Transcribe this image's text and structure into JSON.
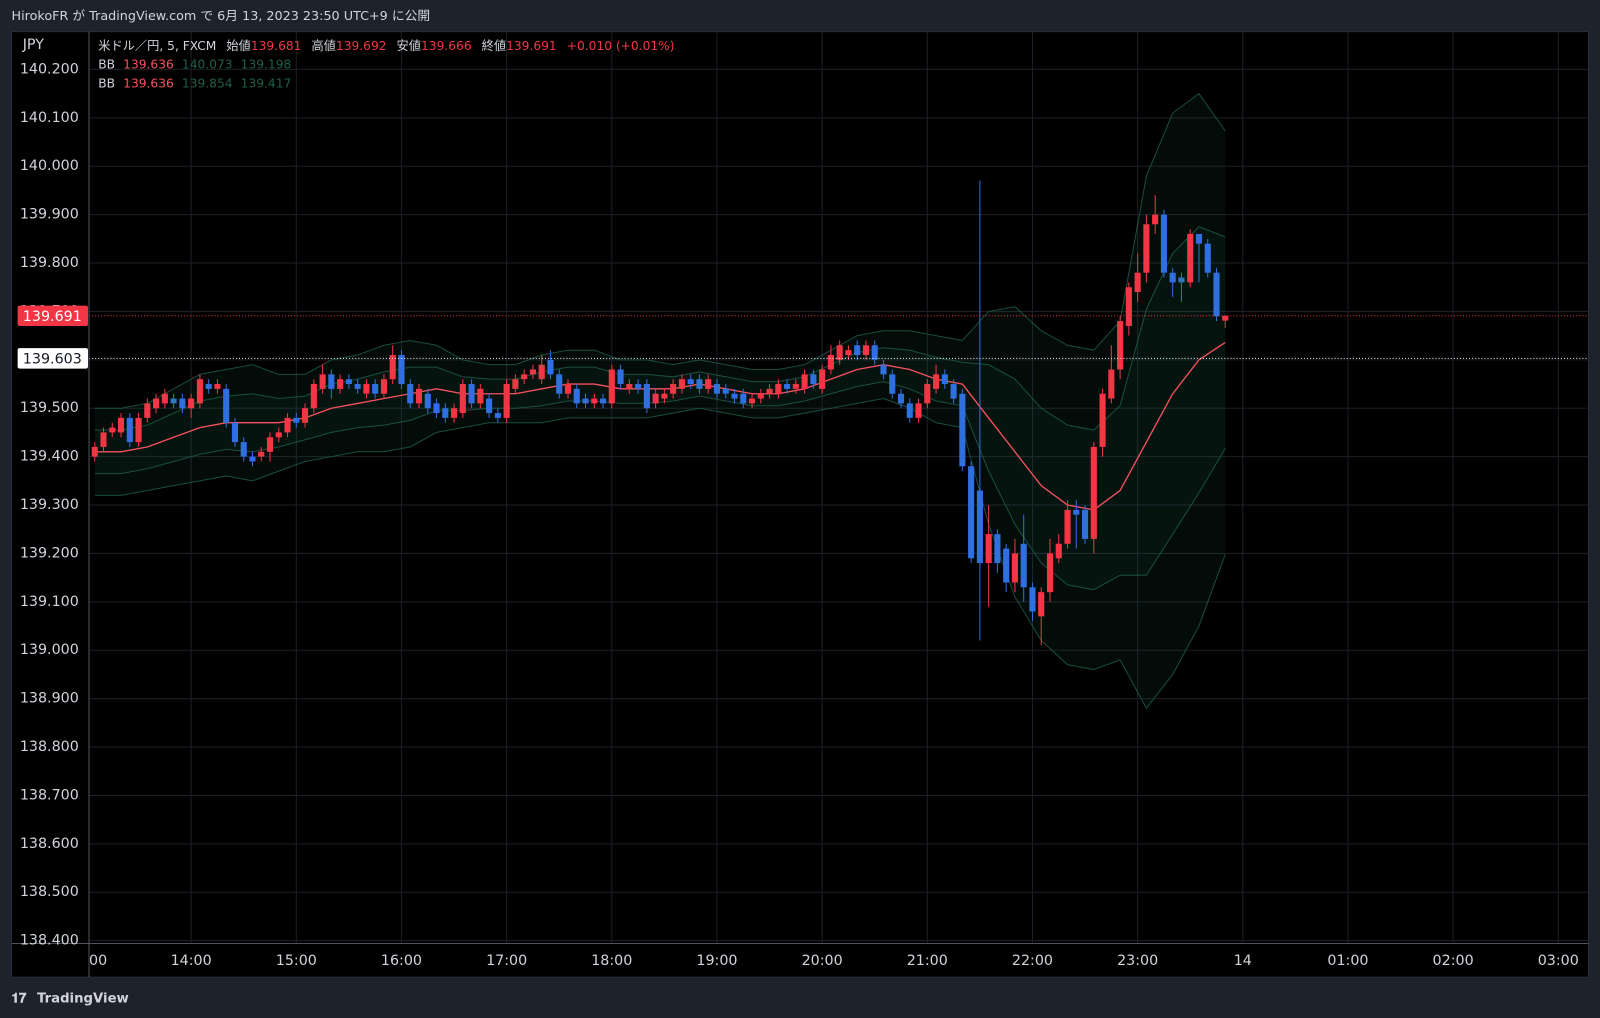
{
  "header": {
    "publisher": "HirokoFR が TradingView.com で 6月 13, 2023 23:50 UTC+9 に公開"
  },
  "footer": {
    "brand": "TradingView"
  },
  "chart_data": {
    "type": "candlestick",
    "symbol": "米ドル／円, 5, FXCM",
    "currency": "JPY",
    "ohlc_legend": {
      "open_label": "始値",
      "open": 139.681,
      "high_label": "高値",
      "high": 139.692,
      "low_label": "安値",
      "low": 139.666,
      "close_label": "終値",
      "close": 139.691,
      "change": "+0.010 (+0.01%)"
    },
    "indicators": [
      {
        "name": "BB",
        "basis": 139.636,
        "upper": 140.073,
        "lower": 139.198
      },
      {
        "name": "BB",
        "basis": 139.636,
        "upper": 139.854,
        "lower": 139.417
      }
    ],
    "up_color": "#f23645",
    "down_color": "#2f6fe0",
    "x": [
      "13:05",
      "13:10",
      "13:15",
      "13:20",
      "13:25",
      "13:30",
      "13:35",
      "13:40",
      "13:45",
      "13:50",
      "13:55",
      "14:00",
      "14:05",
      "14:10",
      "14:15",
      "14:20",
      "14:25",
      "14:30",
      "14:35",
      "14:40",
      "14:45",
      "14:50",
      "14:55",
      "15:00",
      "15:05",
      "15:10",
      "15:15",
      "15:20",
      "15:25",
      "15:30",
      "15:35",
      "15:40",
      "15:45",
      "15:50",
      "15:55",
      "16:00",
      "16:05",
      "16:10",
      "16:15",
      "16:20",
      "16:25",
      "16:30",
      "16:35",
      "16:40",
      "16:45",
      "16:50",
      "16:55",
      "17:00",
      "17:05",
      "17:10",
      "17:15",
      "17:20",
      "17:25",
      "17:30",
      "17:35",
      "17:40",
      "17:45",
      "17:50",
      "17:55",
      "18:00",
      "18:05",
      "18:10",
      "18:15",
      "18:20",
      "18:25",
      "18:30",
      "18:35",
      "18:40",
      "18:45",
      "18:50",
      "18:55",
      "19:00",
      "19:05",
      "19:10",
      "19:15",
      "19:20",
      "19:25",
      "19:30",
      "19:35",
      "19:40",
      "19:45",
      "19:50",
      "19:55",
      "20:00",
      "20:05",
      "20:10",
      "20:15",
      "20:20",
      "20:25",
      "20:30",
      "20:35",
      "20:40",
      "20:45",
      "20:50",
      "20:55",
      "21:00",
      "21:05",
      "21:10",
      "21:15",
      "21:20",
      "21:25",
      "21:30",
      "21:35",
      "21:40",
      "21:45",
      "21:50",
      "21:55",
      "22:00",
      "22:05",
      "22:10",
      "22:15",
      "22:20",
      "22:25",
      "22:30",
      "22:35",
      "22:40",
      "22:45",
      "22:50",
      "22:55",
      "23:00",
      "23:05",
      "23:10",
      "23:15",
      "23:20",
      "23:25",
      "23:30",
      "23:35",
      "23:40",
      "23:45",
      "23:50"
    ],
    "ohlc": [
      [
        139.4,
        139.43,
        139.39,
        139.42
      ],
      [
        139.42,
        139.46,
        139.41,
        139.45
      ],
      [
        139.45,
        139.47,
        139.44,
        139.46
      ],
      [
        139.45,
        139.49,
        139.44,
        139.48
      ],
      [
        139.48,
        139.49,
        139.42,
        139.43
      ],
      [
        139.43,
        139.49,
        139.42,
        139.48
      ],
      [
        139.48,
        139.52,
        139.47,
        139.51
      ],
      [
        139.5,
        139.53,
        139.49,
        139.52
      ],
      [
        139.51,
        139.54,
        139.5,
        139.53
      ],
      [
        139.52,
        139.53,
        139.5,
        139.51
      ],
      [
        139.52,
        139.53,
        139.49,
        139.5
      ],
      [
        139.5,
        139.53,
        139.48,
        139.52
      ],
      [
        139.51,
        139.57,
        139.5,
        139.56
      ],
      [
        139.55,
        139.56,
        139.53,
        139.54
      ],
      [
        139.54,
        139.56,
        139.53,
        139.55
      ],
      [
        139.54,
        139.55,
        139.46,
        139.47
      ],
      [
        139.47,
        139.48,
        139.42,
        139.43
      ],
      [
        139.43,
        139.44,
        139.39,
        139.4
      ],
      [
        139.4,
        139.41,
        139.38,
        139.39
      ],
      [
        139.4,
        139.42,
        139.39,
        139.41
      ],
      [
        139.41,
        139.45,
        139.39,
        139.44
      ],
      [
        139.44,
        139.46,
        139.43,
        139.45
      ],
      [
        139.45,
        139.49,
        139.44,
        139.48
      ],
      [
        139.48,
        139.49,
        139.46,
        139.47
      ],
      [
        139.47,
        139.51,
        139.46,
        139.5
      ],
      [
        139.5,
        139.56,
        139.49,
        139.55
      ],
      [
        139.54,
        139.59,
        139.53,
        139.57
      ],
      [
        139.57,
        139.58,
        139.52,
        139.54
      ],
      [
        139.54,
        139.57,
        139.53,
        139.56
      ],
      [
        139.56,
        139.57,
        139.54,
        139.55
      ],
      [
        139.55,
        139.56,
        139.53,
        139.54
      ],
      [
        139.53,
        139.56,
        139.52,
        139.55
      ],
      [
        139.55,
        139.56,
        139.52,
        139.53
      ],
      [
        139.53,
        139.57,
        139.52,
        139.56
      ],
      [
        139.56,
        139.63,
        139.55,
        139.61
      ],
      [
        139.61,
        139.62,
        139.54,
        139.55
      ],
      [
        139.55,
        139.56,
        139.5,
        139.51
      ],
      [
        139.51,
        139.55,
        139.5,
        139.54
      ],
      [
        139.53,
        139.54,
        139.49,
        139.5
      ],
      [
        139.51,
        139.52,
        139.48,
        139.49
      ],
      [
        139.5,
        139.51,
        139.47,
        139.48
      ],
      [
        139.48,
        139.51,
        139.47,
        139.5
      ],
      [
        139.49,
        139.56,
        139.48,
        139.55
      ],
      [
        139.55,
        139.56,
        139.5,
        139.51
      ],
      [
        139.51,
        139.55,
        139.5,
        139.54
      ],
      [
        139.52,
        139.53,
        139.48,
        139.49
      ],
      [
        139.49,
        139.5,
        139.47,
        139.48
      ],
      [
        139.48,
        139.56,
        139.47,
        139.55
      ],
      [
        139.54,
        139.57,
        139.53,
        139.56
      ],
      [
        139.56,
        139.58,
        139.55,
        139.57
      ],
      [
        139.57,
        139.59,
        139.56,
        139.58
      ],
      [
        139.56,
        139.61,
        139.55,
        139.59
      ],
      [
        139.6,
        139.62,
        139.56,
        139.57
      ],
      [
        139.57,
        139.58,
        139.52,
        139.53
      ],
      [
        139.53,
        139.56,
        139.52,
        139.55
      ],
      [
        139.54,
        139.55,
        139.5,
        139.51
      ],
      [
        139.52,
        139.53,
        139.5,
        139.51
      ],
      [
        139.51,
        139.53,
        139.5,
        139.52
      ],
      [
        139.52,
        139.53,
        139.5,
        139.51
      ],
      [
        139.51,
        139.59,
        139.5,
        139.58
      ],
      [
        139.58,
        139.59,
        139.54,
        139.55
      ],
      [
        139.54,
        139.56,
        139.53,
        139.55
      ],
      [
        139.55,
        139.56,
        139.53,
        139.54
      ],
      [
        139.55,
        139.56,
        139.49,
        139.5
      ],
      [
        139.51,
        139.54,
        139.5,
        139.53
      ],
      [
        139.52,
        139.54,
        139.51,
        139.53
      ],
      [
        139.53,
        139.56,
        139.52,
        139.55
      ],
      [
        139.54,
        139.57,
        139.53,
        139.56
      ],
      [
        139.56,
        139.57,
        139.54,
        139.55
      ],
      [
        139.56,
        139.57,
        139.53,
        139.54
      ],
      [
        139.54,
        139.57,
        139.53,
        139.56
      ],
      [
        139.55,
        139.56,
        139.52,
        139.53
      ],
      [
        139.54,
        139.55,
        139.52,
        139.53
      ],
      [
        139.53,
        139.54,
        139.51,
        139.52
      ],
      [
        139.53,
        139.54,
        139.5,
        139.51
      ],
      [
        139.51,
        139.53,
        139.5,
        139.52
      ],
      [
        139.52,
        139.54,
        139.51,
        139.53
      ],
      [
        139.53,
        139.55,
        139.52,
        139.54
      ],
      [
        139.53,
        139.56,
        139.52,
        139.55
      ],
      [
        139.55,
        139.56,
        139.53,
        139.54
      ],
      [
        139.54,
        139.56,
        139.53,
        139.55
      ],
      [
        139.54,
        139.58,
        139.53,
        139.57
      ],
      [
        139.57,
        139.58,
        139.54,
        139.55
      ],
      [
        139.54,
        139.59,
        139.53,
        139.58
      ],
      [
        139.58,
        139.63,
        139.57,
        139.61
      ],
      [
        139.6,
        139.64,
        139.59,
        139.63
      ],
      [
        139.61,
        139.63,
        139.6,
        139.62
      ],
      [
        139.63,
        139.64,
        139.6,
        139.61
      ],
      [
        139.61,
        139.64,
        139.6,
        139.63
      ],
      [
        139.63,
        139.64,
        139.59,
        139.6
      ],
      [
        139.59,
        139.6,
        139.56,
        139.57
      ],
      [
        139.57,
        139.58,
        139.52,
        139.53
      ],
      [
        139.53,
        139.54,
        139.5,
        139.51
      ],
      [
        139.51,
        139.52,
        139.47,
        139.48
      ],
      [
        139.48,
        139.52,
        139.47,
        139.51
      ],
      [
        139.51,
        139.56,
        139.5,
        139.55
      ],
      [
        139.54,
        139.59,
        139.53,
        139.57
      ],
      [
        139.57,
        139.58,
        139.54,
        139.55
      ],
      [
        139.55,
        139.56,
        139.51,
        139.52
      ],
      [
        139.53,
        139.54,
        139.37,
        139.38
      ],
      [
        139.38,
        139.39,
        139.18,
        139.19
      ],
      [
        139.33,
        139.97,
        139.02,
        139.18
      ],
      [
        139.18,
        139.3,
        139.09,
        139.24
      ],
      [
        139.24,
        139.25,
        139.16,
        139.18
      ],
      [
        139.21,
        139.22,
        139.12,
        139.14
      ],
      [
        139.14,
        139.23,
        139.12,
        139.2
      ],
      [
        139.22,
        139.28,
        139.1,
        139.13
      ],
      [
        139.13,
        139.14,
        139.06,
        139.08
      ],
      [
        139.07,
        139.13,
        139.01,
        139.12
      ],
      [
        139.12,
        139.23,
        139.1,
        139.2
      ],
      [
        139.19,
        139.24,
        139.18,
        139.22
      ],
      [
        139.22,
        139.31,
        139.21,
        139.29
      ],
      [
        139.29,
        139.31,
        139.21,
        139.28
      ],
      [
        139.29,
        139.3,
        139.22,
        139.23
      ],
      [
        139.23,
        139.43,
        139.2,
        139.42
      ],
      [
        139.42,
        139.54,
        139.4,
        139.53
      ],
      [
        139.52,
        139.63,
        139.51,
        139.58
      ],
      [
        139.58,
        139.69,
        139.56,
        139.68
      ],
      [
        139.67,
        139.76,
        139.65,
        139.75
      ],
      [
        139.74,
        139.82,
        139.72,
        139.78
      ],
      [
        139.78,
        139.9,
        139.76,
        139.88
      ],
      [
        139.88,
        139.94,
        139.86,
        139.9
      ],
      [
        139.9,
        139.91,
        139.77,
        139.78
      ],
      [
        139.78,
        139.79,
        139.73,
        139.76
      ],
      [
        139.77,
        139.78,
        139.72,
        139.76
      ],
      [
        139.76,
        139.87,
        139.75,
        139.86
      ],
      [
        139.86,
        139.86,
        139.76,
        139.84
      ],
      [
        139.84,
        139.85,
        139.77,
        139.78
      ],
      [
        139.78,
        139.79,
        139.68,
        139.69
      ],
      [
        139.681,
        139.692,
        139.666,
        139.691
      ]
    ],
    "bands": {
      "basis_color": "#f7525f",
      "band_color": "#1e5f4a",
      "x": [
        "13:05",
        "13:20",
        "13:35",
        "13:50",
        "14:05",
        "14:20",
        "14:35",
        "14:50",
        "15:05",
        "15:20",
        "15:35",
        "15:50",
        "16:05",
        "16:20",
        "16:35",
        "16:50",
        "17:05",
        "17:20",
        "17:35",
        "17:50",
        "18:05",
        "18:20",
        "18:35",
        "18:50",
        "19:05",
        "19:20",
        "19:35",
        "19:50",
        "20:05",
        "20:20",
        "20:35",
        "20:50",
        "21:05",
        "21:20",
        "21:35",
        "21:50",
        "22:05",
        "22:20",
        "22:35",
        "22:50",
        "23:05",
        "23:20",
        "23:35",
        "23:50"
      ],
      "basis": [
        139.41,
        139.41,
        139.42,
        139.44,
        139.46,
        139.47,
        139.47,
        139.47,
        139.48,
        139.5,
        139.51,
        139.52,
        139.53,
        139.54,
        139.53,
        139.53,
        139.53,
        139.54,
        139.55,
        139.55,
        139.54,
        139.54,
        139.54,
        139.55,
        139.54,
        139.53,
        139.53,
        139.54,
        139.56,
        139.58,
        139.59,
        139.58,
        139.56,
        139.55,
        139.48,
        139.41,
        139.34,
        139.3,
        139.29,
        139.33,
        139.43,
        139.53,
        139.6,
        139.636
      ],
      "upper_outer": [
        139.5,
        139.5,
        139.51,
        139.54,
        139.57,
        139.58,
        139.59,
        139.57,
        139.57,
        139.6,
        139.61,
        139.63,
        139.64,
        139.63,
        139.6,
        139.59,
        139.59,
        139.61,
        139.62,
        139.62,
        139.6,
        139.6,
        139.59,
        139.6,
        139.59,
        139.58,
        139.58,
        139.59,
        139.62,
        139.65,
        139.66,
        139.66,
        139.65,
        139.64,
        139.7,
        139.71,
        139.66,
        139.63,
        139.62,
        139.68,
        139.98,
        140.11,
        140.15,
        140.073
      ],
      "lower_outer": [
        139.32,
        139.32,
        139.33,
        139.34,
        139.35,
        139.36,
        139.35,
        139.37,
        139.39,
        139.4,
        139.41,
        139.41,
        139.42,
        139.45,
        139.46,
        139.47,
        139.47,
        139.47,
        139.48,
        139.48,
        139.48,
        139.48,
        139.49,
        139.5,
        139.49,
        139.48,
        139.48,
        139.49,
        139.5,
        139.51,
        139.52,
        139.5,
        139.47,
        139.46,
        139.26,
        139.11,
        139.02,
        138.97,
        138.96,
        138.98,
        138.88,
        138.95,
        139.05,
        139.198
      ],
      "upper_inner": [
        139.455,
        139.455,
        139.465,
        139.49,
        139.515,
        139.525,
        139.53,
        139.52,
        139.525,
        139.55,
        139.56,
        139.575,
        139.585,
        139.585,
        139.565,
        139.56,
        139.56,
        139.575,
        139.585,
        139.585,
        139.57,
        139.57,
        139.565,
        139.575,
        139.565,
        139.555,
        139.555,
        139.565,
        139.59,
        139.615,
        139.625,
        139.62,
        139.605,
        139.595,
        139.59,
        139.56,
        139.5,
        139.465,
        139.455,
        139.505,
        139.705,
        139.82,
        139.875,
        139.854
      ],
      "lower_inner": [
        139.365,
        139.365,
        139.375,
        139.39,
        139.405,
        139.415,
        139.41,
        139.42,
        139.435,
        139.45,
        139.46,
        139.465,
        139.475,
        139.495,
        139.495,
        139.5,
        139.5,
        139.505,
        139.515,
        139.515,
        139.51,
        139.51,
        139.515,
        139.525,
        139.515,
        139.505,
        139.505,
        139.515,
        139.53,
        139.545,
        139.555,
        139.54,
        139.515,
        139.505,
        139.37,
        139.26,
        139.18,
        139.135,
        139.125,
        139.155,
        139.155,
        139.24,
        139.325,
        139.417
      ]
    },
    "price_lines": [
      {
        "value": 139.691,
        "color": "#f23645"
      },
      {
        "value": 139.603,
        "color": "#ffffff"
      }
    ],
    "ylim": [
      138.394,
      140.276
    ],
    "yticks": [
      {
        "value": 140.2,
        "label": "140.200"
      },
      {
        "value": 140.1,
        "label": "140.100"
      },
      {
        "value": 140.0,
        "label": "140.000"
      },
      {
        "value": 139.9,
        "label": "139.900"
      },
      {
        "value": 139.8,
        "label": "139.800"
      },
      {
        "value": 139.7,
        "label": "139.700"
      },
      {
        "value": 139.6,
        "label": "139.600"
      },
      {
        "value": 139.5,
        "label": "139.500"
      },
      {
        "value": 139.4,
        "label": "139.400"
      },
      {
        "value": 139.3,
        "label": "139.300"
      },
      {
        "value": 139.2,
        "label": "139.200"
      },
      {
        "value": 139.1,
        "label": "139.100"
      },
      {
        "value": 139.0,
        "label": "139.000"
      },
      {
        "value": 138.9,
        "label": "138.900"
      },
      {
        "value": 138.8,
        "label": "138.800"
      },
      {
        "value": 138.7,
        "label": "138.700"
      },
      {
        "value": 138.6,
        "label": "138.600"
      },
      {
        "value": 138.5,
        "label": "138.500"
      },
      {
        "value": 138.4,
        "label": "138.400"
      }
    ],
    "xticks": [
      "00",
      "14:00",
      "15:00",
      "16:00",
      "17:00",
      "18:00",
      "19:00",
      "20:00",
      "21:00",
      "22:00",
      "23:00",
      "14",
      "01:00",
      "02:00",
      "03:00"
    ],
    "grid": true
  }
}
